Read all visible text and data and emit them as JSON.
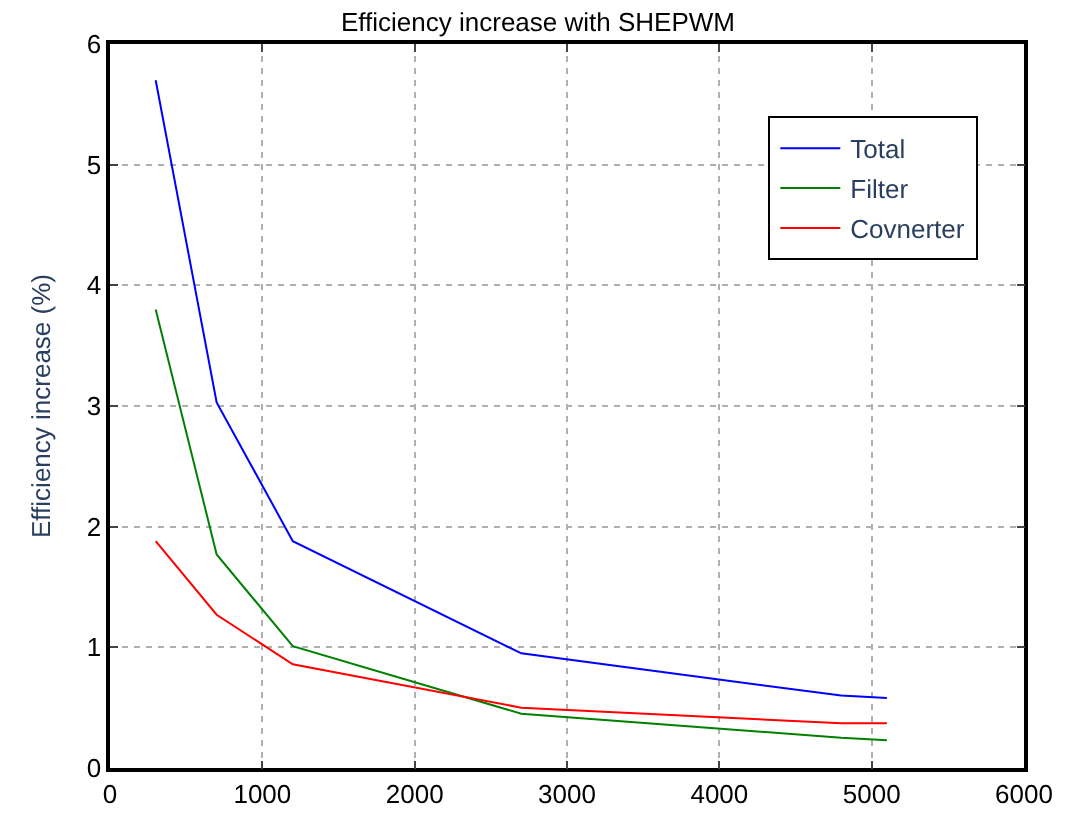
{
  "chart_data": {
    "type": "line",
    "title": "Efficiency increase with SHEPWM",
    "ylabel": "Efficiency increase (%)",
    "x": [
      300,
      700,
      1200,
      2700,
      4800,
      5100
    ],
    "series": [
      {
        "name": "Total",
        "color": "#0000ff",
        "values": [
          5.7,
          3.03,
          1.88,
          0.95,
          0.6,
          0.58
        ]
      },
      {
        "name": "Filter",
        "color": "#008000",
        "values": [
          3.8,
          1.77,
          1.01,
          0.45,
          0.25,
          0.23
        ]
      },
      {
        "name": "Covnerter",
        "color": "#ff0000",
        "values": [
          1.88,
          1.27,
          0.86,
          0.5,
          0.37,
          0.37
        ]
      }
    ],
    "xlim": [
      0,
      6000
    ],
    "xticks": [
      0,
      1000,
      2000,
      3000,
      4000,
      5000,
      6000
    ],
    "ylim": [
      0,
      6
    ],
    "yticks": [
      0,
      1,
      2,
      3,
      4,
      5,
      6
    ],
    "grid": true,
    "legend": "top right",
    "marker": "none",
    "line_style": "solid"
  }
}
